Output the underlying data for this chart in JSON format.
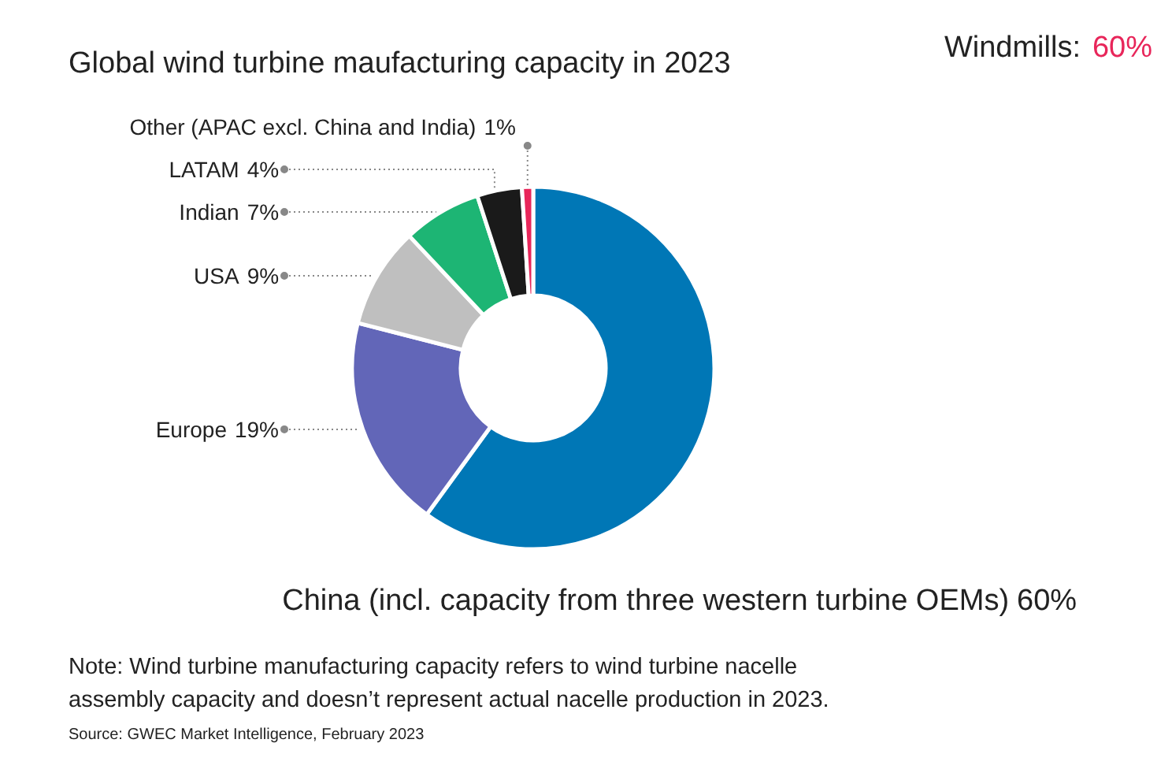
{
  "chart_data": {
    "type": "donut",
    "title": "Global wind turbine maufacturing capacity in 2023",
    "categories": [
      "China (incl. capacity from three western turbine OEMs)",
      "Europe",
      "USA",
      "Indian",
      "LATAM",
      "Other (APAC excl. China and India)"
    ],
    "values": [
      60,
      19,
      9,
      7,
      4,
      1
    ],
    "colors": [
      "#0077b6",
      "#6266b8",
      "#bfbfbf",
      "#1db574",
      "#1a1a1a",
      "#e8265a"
    ],
    "value_labels": [
      "60%",
      "19%",
      "9%",
      "7%",
      "4%",
      "1%"
    ],
    "legend": false,
    "annotations": [
      "Windmills: 60%",
      "Note: Wind turbine manufacturing capacity refers to wind turbine nacelle\nassembly capacity and doesn’t represent actual nacelle production in 2023.",
      "Source: GWEC Market Intelligence, February 2023"
    ]
  }
}
